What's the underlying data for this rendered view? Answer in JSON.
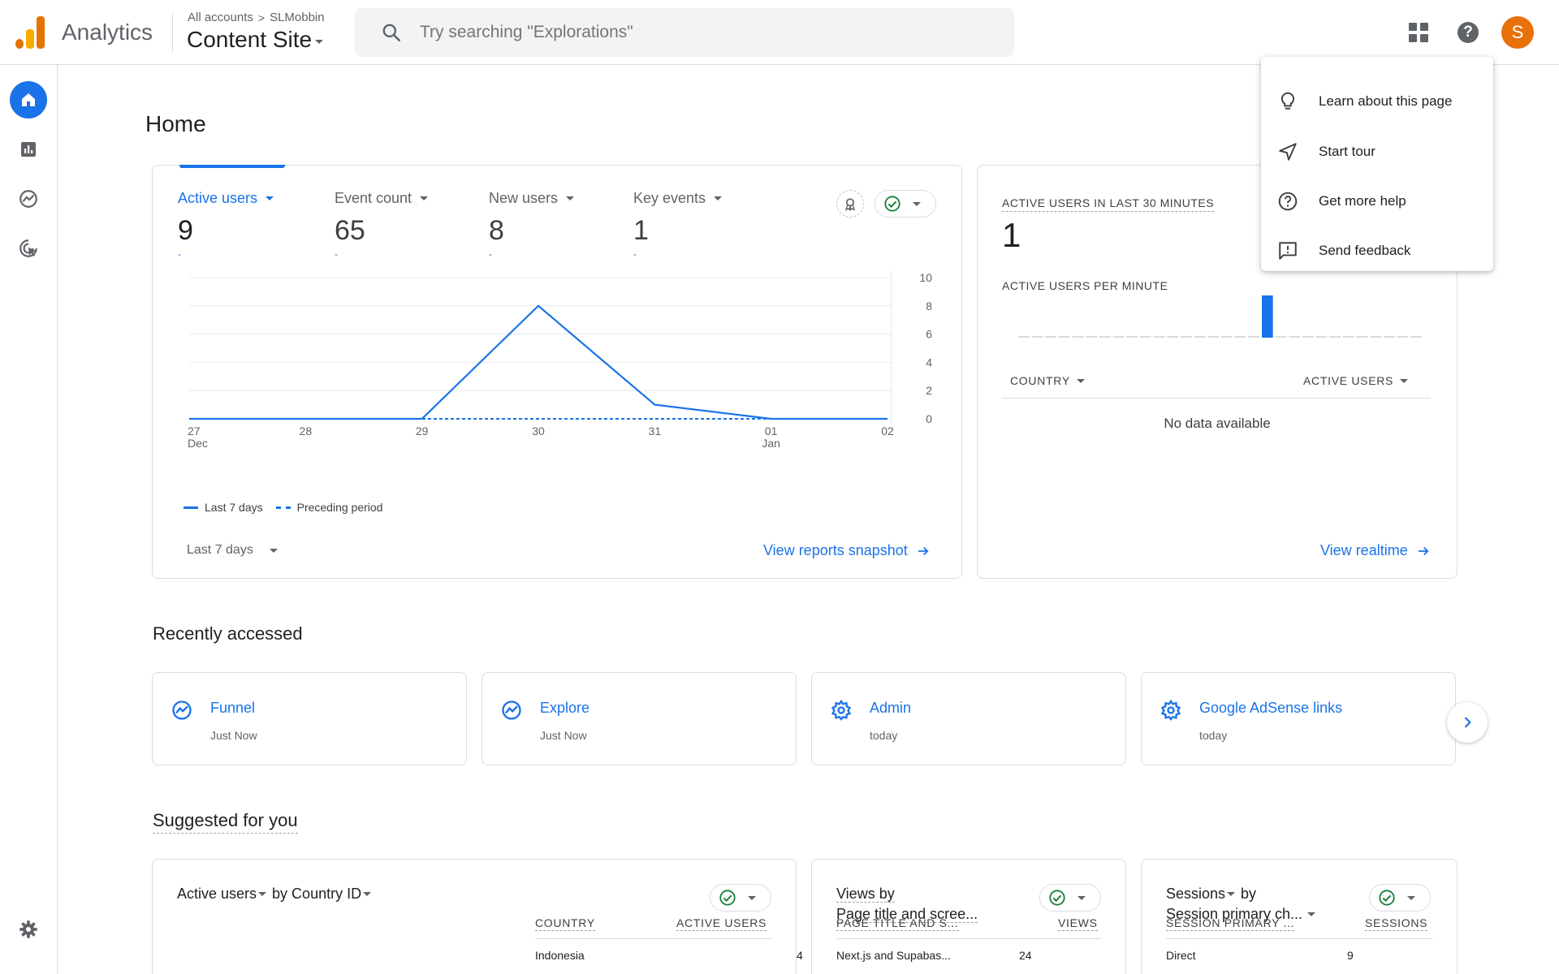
{
  "topbar": {
    "app_name": "Analytics",
    "breadcrumb_root": "All accounts",
    "breadcrumb_sep": ">",
    "breadcrumb_account": "SLMobbin",
    "property_name": "Content Site",
    "search_placeholder": "Try searching \"Explorations\"",
    "avatar_letter": "S",
    "help_glyph": "?"
  },
  "page": {
    "title": "Home"
  },
  "metrics": [
    {
      "label": "Active users",
      "value": "9",
      "change": "-"
    },
    {
      "label": "Event count",
      "value": "65",
      "change": "-"
    },
    {
      "label": "New users",
      "value": "8",
      "change": "-"
    },
    {
      "label": "Key events",
      "value": "1",
      "change": "-"
    }
  ],
  "chart_data": {
    "type": "line",
    "categories": [
      "27 Dec",
      "28",
      "29",
      "30",
      "31",
      "01 Jan",
      "02"
    ],
    "series": [
      {
        "name": "Last 7 days",
        "values": [
          0,
          0,
          0,
          8,
          1,
          0,
          0
        ]
      },
      {
        "name": "Preceding period",
        "values": [
          0,
          0,
          0,
          0,
          0,
          0,
          0
        ]
      }
    ],
    "x_tick_labels": [
      [
        "27",
        "Dec"
      ],
      [
        "28",
        ""
      ],
      [
        "29",
        ""
      ],
      [
        "30",
        ""
      ],
      [
        "31",
        ""
      ],
      [
        "01",
        "Jan"
      ],
      [
        "02",
        ""
      ]
    ],
    "y_ticks": [
      "10",
      "8",
      "6",
      "4",
      "2",
      "0"
    ],
    "ylim": [
      0,
      10
    ],
    "grid": true,
    "legend_position": "bottom-left"
  },
  "metrics_card": {
    "date_range": "Last 7 days",
    "link": "View reports snapshot"
  },
  "realtime": {
    "title": "ACTIVE USERS IN LAST 30 MINUTES",
    "value": "1",
    "subtitle": "ACTIVE USERS PER MINUTE",
    "per_minute": [
      0,
      0,
      0,
      0,
      0,
      0,
      0,
      0,
      0,
      0,
      0,
      0,
      0,
      0,
      0,
      0,
      0,
      0,
      1,
      0,
      0,
      0,
      0,
      0,
      0,
      0,
      0,
      0,
      0,
      0
    ],
    "col_country": "COUNTRY",
    "col_users": "ACTIVE USERS",
    "no_data": "No data available",
    "link": "View realtime"
  },
  "recent": {
    "title": "Recently accessed",
    "items": [
      {
        "title": "Funnel",
        "time": "Just Now",
        "icon": "explore-icon"
      },
      {
        "title": "Explore",
        "time": "Just Now",
        "icon": "explore-icon"
      },
      {
        "title": "Admin",
        "time": "today",
        "icon": "gear-icon"
      },
      {
        "title": "Google AdSense links",
        "time": "today",
        "icon": "gear-icon"
      }
    ]
  },
  "suggested": {
    "title": "Suggested for you",
    "cards": [
      {
        "title_a": "Active users",
        "title_b": " by Country ID",
        "col1": "COUNTRY",
        "col2": "ACTIVE USERS",
        "row_label": "Indonesia",
        "row_value": "4"
      },
      {
        "title_a": "Views by",
        "title_b": "Page title and scree...",
        "col1": "PAGE TITLE AND S...",
        "col2": "VIEWS",
        "row_label": "Next.js and Supabas...",
        "row_value": "24"
      },
      {
        "title_a": "Sessions",
        "title_b": "Session primary ch...",
        "title_by": " by",
        "col1": "SESSION PRIMARY ...",
        "col2": "SESSIONS",
        "row_label": "Direct",
        "row_value": "9"
      }
    ]
  },
  "help_menu": {
    "items": [
      {
        "label": "Learn about this page",
        "icon": "lightbulb-icon"
      },
      {
        "label": "Start tour",
        "icon": "send-icon"
      },
      {
        "label": "Get more help",
        "icon": "help-circle-icon"
      },
      {
        "label": "Send feedback",
        "icon": "feedback-icon"
      }
    ]
  },
  "colors": {
    "accent": "#1a73e8",
    "avatar": "#e8710a",
    "logo_orange": "#f9ab00",
    "logo_dark_orange": "#e37400",
    "success": "#188038"
  }
}
